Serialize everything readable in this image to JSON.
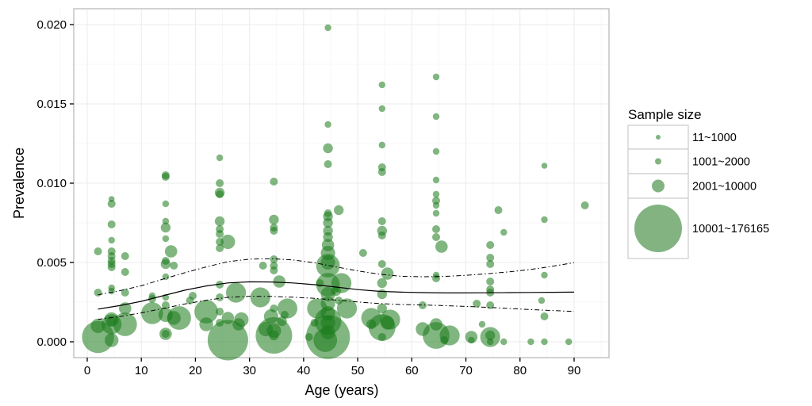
{
  "chart_data": {
    "type": "scatter",
    "title": "",
    "xlabel": "Age (years)",
    "ylabel": "Prevalence",
    "xlim": [
      -2,
      97
    ],
    "ylim": [
      -0.001,
      0.021
    ],
    "x_ticks": [
      0,
      10,
      20,
      30,
      40,
      50,
      60,
      70,
      80,
      90
    ],
    "x_tick_labels": [
      "0",
      "10",
      "20",
      "30",
      "40",
      "50",
      "60",
      "70",
      "80",
      "90"
    ],
    "y_ticks": [
      0.0,
      0.005,
      0.01,
      0.015,
      0.02
    ],
    "y_tick_labels": [
      "0.000",
      "0.005",
      "0.010",
      "0.015",
      "0.020"
    ],
    "grid": true,
    "point_color": "#1a7a1a",
    "point_opacity": 0.55,
    "legend": {
      "title": "Sample size",
      "placement": "right",
      "color": "#82b381",
      "entries": [
        {
          "label": "11~1000",
          "size": 500
        },
        {
          "label": "1001~2000",
          "size": 1500
        },
        {
          "label": "2001~10000",
          "size": 6000
        },
        {
          "label": "10001~176165",
          "size": 176165
        }
      ]
    },
    "points": [
      {
        "x": 2,
        "y": 0.0003,
        "n": 60000
      },
      {
        "x": 2,
        "y": 0.001,
        "n": 9000
      },
      {
        "x": 2,
        "y": 0.0057,
        "n": 1500
      },
      {
        "x": 2,
        "y": 0.0031,
        "n": 1500
      },
      {
        "x": 4.5,
        "y": 0.0011,
        "n": 20000
      },
      {
        "x": 4.5,
        "y": 0.0001,
        "n": 8000
      },
      {
        "x": 4.5,
        "y": 0.0014,
        "n": 9000
      },
      {
        "x": 4.5,
        "y": 0.009,
        "n": 500
      },
      {
        "x": 4.5,
        "y": 0.0087,
        "n": 1500
      },
      {
        "x": 4.5,
        "y": 0.0074,
        "n": 1500
      },
      {
        "x": 4.5,
        "y": 0.0064,
        "n": 800
      },
      {
        "x": 4.5,
        "y": 0.0057,
        "n": 1500
      },
      {
        "x": 4.5,
        "y": 0.0054,
        "n": 1500
      },
      {
        "x": 4.5,
        "y": 0.0051,
        "n": 1500
      },
      {
        "x": 4.5,
        "y": 0.0049,
        "n": 1500
      },
      {
        "x": 4.5,
        "y": 0.0047,
        "n": 1500
      },
      {
        "x": 4.5,
        "y": 0.0034,
        "n": 800
      },
      {
        "x": 4.5,
        "y": 0.0032,
        "n": 800
      },
      {
        "x": 4.5,
        "y": 0.0013,
        "n": 3000
      },
      {
        "x": 7,
        "y": 0.0011,
        "n": 30000
      },
      {
        "x": 7,
        "y": 0.0054,
        "n": 1500
      },
      {
        "x": 7,
        "y": 0.0044,
        "n": 1500
      },
      {
        "x": 7,
        "y": 0.0021,
        "n": 6000
      },
      {
        "x": 7,
        "y": 0.0031,
        "n": 1500
      },
      {
        "x": 12,
        "y": 0.0018,
        "n": 25000
      },
      {
        "x": 12,
        "y": 0.0029,
        "n": 800
      },
      {
        "x": 12,
        "y": 0.0027,
        "n": 1500
      },
      {
        "x": 14.5,
        "y": 0.0105,
        "n": 1500
      },
      {
        "x": 14.5,
        "y": 0.0104,
        "n": 1500
      },
      {
        "x": 14.5,
        "y": 0.0087,
        "n": 800
      },
      {
        "x": 14.5,
        "y": 0.0076,
        "n": 800
      },
      {
        "x": 14.5,
        "y": 0.0072,
        "n": 3000
      },
      {
        "x": 14.5,
        "y": 0.0065,
        "n": 800
      },
      {
        "x": 14.5,
        "y": 0.0051,
        "n": 1500
      },
      {
        "x": 14.5,
        "y": 0.0049,
        "n": 3000
      },
      {
        "x": 14.5,
        "y": 0.0041,
        "n": 800
      },
      {
        "x": 14.5,
        "y": 0.0028,
        "n": 800
      },
      {
        "x": 14.5,
        "y": 0.0023,
        "n": 1500
      },
      {
        "x": 14.5,
        "y": 0.0017,
        "n": 9000
      },
      {
        "x": 14.5,
        "y": 0.0005,
        "n": 6000
      },
      {
        "x": 14.5,
        "y": 0.0005,
        "n": 1500
      },
      {
        "x": 15.5,
        "y": 0.0057,
        "n": 6000
      },
      {
        "x": 16,
        "y": 0.0048,
        "n": 1500
      },
      {
        "x": 17,
        "y": 0.0015,
        "n": 30000
      },
      {
        "x": 16,
        "y": 0.0015,
        "n": 8000
      },
      {
        "x": 19.5,
        "y": 0.0029,
        "n": 1500
      },
      {
        "x": 19,
        "y": 0.0026,
        "n": 1500
      },
      {
        "x": 22,
        "y": 0.0019,
        "n": 30000
      },
      {
        "x": 22,
        "y": 0.0011,
        "n": 8000
      },
      {
        "x": 24.5,
        "y": 0.0116,
        "n": 800
      },
      {
        "x": 24.5,
        "y": 0.01,
        "n": 1500
      },
      {
        "x": 24.5,
        "y": 0.0094,
        "n": 3000
      },
      {
        "x": 24.5,
        "y": 0.0093,
        "n": 1500
      },
      {
        "x": 24.5,
        "y": 0.0076,
        "n": 3000
      },
      {
        "x": 24.5,
        "y": 0.0071,
        "n": 1500
      },
      {
        "x": 24.5,
        "y": 0.0068,
        "n": 1500
      },
      {
        "x": 24.5,
        "y": 0.0063,
        "n": 1500
      },
      {
        "x": 24.5,
        "y": 0.0059,
        "n": 1500
      },
      {
        "x": 24.5,
        "y": 0.0036,
        "n": 1500
      },
      {
        "x": 24.5,
        "y": 0.0028,
        "n": 1500
      },
      {
        "x": 24.5,
        "y": 0.0019,
        "n": 1500
      },
      {
        "x": 24.5,
        "y": 0.0012,
        "n": 1500
      },
      {
        "x": 26,
        "y": 0.0063,
        "n": 9000
      },
      {
        "x": 26,
        "y": 0.0001,
        "n": 100000
      },
      {
        "x": 26,
        "y": 0.0015,
        "n": 6000
      },
      {
        "x": 27.5,
        "y": 0.0031,
        "n": 20000
      },
      {
        "x": 28,
        "y": 0.0011,
        "n": 6000
      },
      {
        "x": 28.5,
        "y": 0.0014,
        "n": 9000
      },
      {
        "x": 32,
        "y": 0.0028,
        "n": 20000
      },
      {
        "x": 32.5,
        "y": 0.0048,
        "n": 1500
      },
      {
        "x": 34.5,
        "y": 0.0101,
        "n": 1500
      },
      {
        "x": 34.5,
        "y": 0.0077,
        "n": 3000
      },
      {
        "x": 34.5,
        "y": 0.0072,
        "n": 1500
      },
      {
        "x": 34.5,
        "y": 0.007,
        "n": 1500
      },
      {
        "x": 34.5,
        "y": 0.0052,
        "n": 1500
      },
      {
        "x": 34.5,
        "y": 0.0048,
        "n": 1500
      },
      {
        "x": 34.5,
        "y": 0.0045,
        "n": 1500
      },
      {
        "x": 34.5,
        "y": 0.0021,
        "n": 1500
      },
      {
        "x": 34.5,
        "y": 0.0007,
        "n": 9000
      },
      {
        "x": 34.5,
        "y": 0.0004,
        "n": 3000
      },
      {
        "x": 34.5,
        "y": 0.0004,
        "n": 80000
      },
      {
        "x": 34,
        "y": 0.0016,
        "n": 9000
      },
      {
        "x": 35.5,
        "y": 0.0038,
        "n": 6000
      },
      {
        "x": 36,
        "y": 0.0013,
        "n": 3000
      },
      {
        "x": 36.5,
        "y": 0.0017,
        "n": 1500
      },
      {
        "x": 37,
        "y": 0.0021,
        "n": 20000
      },
      {
        "x": 33,
        "y": 0.0008,
        "n": 9000
      },
      {
        "x": 42.5,
        "y": 0.0021,
        "n": 20000
      },
      {
        "x": 43,
        "y": 0.0037,
        "n": 1500
      },
      {
        "x": 44.5,
        "y": 0.0198,
        "n": 800
      },
      {
        "x": 44.5,
        "y": 0.0137,
        "n": 800
      },
      {
        "x": 44.5,
        "y": 0.0122,
        "n": 3000
      },
      {
        "x": 44.5,
        "y": 0.0112,
        "n": 1500
      },
      {
        "x": 44.5,
        "y": 0.0081,
        "n": 1500
      },
      {
        "x": 44.5,
        "y": 0.0079,
        "n": 3000
      },
      {
        "x": 44.5,
        "y": 0.0075,
        "n": 3000
      },
      {
        "x": 44.5,
        "y": 0.007,
        "n": 3000
      },
      {
        "x": 44.5,
        "y": 0.0066,
        "n": 3000
      },
      {
        "x": 44.5,
        "y": 0.0061,
        "n": 6000
      },
      {
        "x": 44.5,
        "y": 0.0056,
        "n": 9000
      },
      {
        "x": 44.5,
        "y": 0.005,
        "n": 9000
      },
      {
        "x": 44.5,
        "y": 0.0048,
        "n": 30000
      },
      {
        "x": 44.5,
        "y": 0.0036,
        "n": 30000
      },
      {
        "x": 44.5,
        "y": 0.003,
        "n": 9000
      },
      {
        "x": 44.5,
        "y": 0.0024,
        "n": 9000
      },
      {
        "x": 44.5,
        "y": 0.0018,
        "n": 9000
      },
      {
        "x": 44.5,
        "y": 0.0012,
        "n": 9000
      },
      {
        "x": 44.5,
        "y": 0.0006,
        "n": 9000
      },
      {
        "x": 44.5,
        "y": 0.0003,
        "n": 120000
      },
      {
        "x": 44.5,
        "y": 0.0013,
        "n": 40000
      },
      {
        "x": 44,
        "y": 0.0001,
        "n": 30000
      },
      {
        "x": 46.5,
        "y": 0.0083,
        "n": 3000
      },
      {
        "x": 47,
        "y": 0.0037,
        "n": 20000
      },
      {
        "x": 48,
        "y": 0.0021,
        "n": 20000
      },
      {
        "x": 46,
        "y": 0.0032,
        "n": 3000
      },
      {
        "x": 46.5,
        "y": 0.0026,
        "n": 1500
      },
      {
        "x": 42,
        "y": 0.0012,
        "n": 1500
      },
      {
        "x": 41,
        "y": 0.0003,
        "n": 1500
      },
      {
        "x": 52.5,
        "y": 0.0015,
        "n": 20000
      },
      {
        "x": 51,
        "y": 0.0056,
        "n": 1500
      },
      {
        "x": 52.5,
        "y": 0.0011,
        "n": 3000
      },
      {
        "x": 54.5,
        "y": 0.0162,
        "n": 800
      },
      {
        "x": 54.5,
        "y": 0.0147,
        "n": 800
      },
      {
        "x": 54.5,
        "y": 0.0124,
        "n": 800
      },
      {
        "x": 54.5,
        "y": 0.011,
        "n": 1500
      },
      {
        "x": 54.5,
        "y": 0.0107,
        "n": 1500
      },
      {
        "x": 54.5,
        "y": 0.0076,
        "n": 1500
      },
      {
        "x": 54.5,
        "y": 0.007,
        "n": 3000
      },
      {
        "x": 54.5,
        "y": 0.0067,
        "n": 1500
      },
      {
        "x": 54.5,
        "y": 0.0049,
        "n": 1500
      },
      {
        "x": 54.5,
        "y": 0.0037,
        "n": 3000
      },
      {
        "x": 54.5,
        "y": 0.003,
        "n": 3000
      },
      {
        "x": 54.5,
        "y": 0.0021,
        "n": 3000
      },
      {
        "x": 54.5,
        "y": 0.0009,
        "n": 40000
      },
      {
        "x": 54.5,
        "y": 0.0003,
        "n": 1500
      },
      {
        "x": 55.5,
        "y": 0.0043,
        "n": 6000
      },
      {
        "x": 56,
        "y": 0.0014,
        "n": 20000
      },
      {
        "x": 55.5,
        "y": 0.0012,
        "n": 8000
      },
      {
        "x": 62,
        "y": 0.0008,
        "n": 8000
      },
      {
        "x": 62,
        "y": 0.0023,
        "n": 1500
      },
      {
        "x": 64.5,
        "y": 0.0167,
        "n": 800
      },
      {
        "x": 64.5,
        "y": 0.0142,
        "n": 800
      },
      {
        "x": 64.5,
        "y": 0.012,
        "n": 800
      },
      {
        "x": 64.5,
        "y": 0.0102,
        "n": 800
      },
      {
        "x": 64.5,
        "y": 0.0093,
        "n": 800
      },
      {
        "x": 64.5,
        "y": 0.0089,
        "n": 1500
      },
      {
        "x": 64.5,
        "y": 0.0086,
        "n": 800
      },
      {
        "x": 64.5,
        "y": 0.0081,
        "n": 800
      },
      {
        "x": 64.5,
        "y": 0.0071,
        "n": 1500
      },
      {
        "x": 64.5,
        "y": 0.0066,
        "n": 1500
      },
      {
        "x": 64.5,
        "y": 0.0042,
        "n": 800
      },
      {
        "x": 64.5,
        "y": 0.004,
        "n": 1500
      },
      {
        "x": 64.5,
        "y": 0.0011,
        "n": 6000
      },
      {
        "x": 64.5,
        "y": 0.0004,
        "n": 40000
      },
      {
        "x": 65.5,
        "y": 0.006,
        "n": 6000
      },
      {
        "x": 67,
        "y": 0.0004,
        "n": 20000
      },
      {
        "x": 66,
        "y": 0.0001,
        "n": 1500
      },
      {
        "x": 71,
        "y": 0.0003,
        "n": 6000
      },
      {
        "x": 71,
        "y": 0.0001,
        "n": 800
      },
      {
        "x": 73,
        "y": 0.0011,
        "n": 800
      },
      {
        "x": 72,
        "y": 0.0024,
        "n": 1500
      },
      {
        "x": 74.5,
        "y": 0.0061,
        "n": 1500
      },
      {
        "x": 74.5,
        "y": 0.0053,
        "n": 1500
      },
      {
        "x": 74.5,
        "y": 0.0049,
        "n": 1500
      },
      {
        "x": 74.5,
        "y": 0.0038,
        "n": 1500
      },
      {
        "x": 74.5,
        "y": 0.0033,
        "n": 1500
      },
      {
        "x": 74.5,
        "y": 0.0031,
        "n": 1500
      },
      {
        "x": 74.5,
        "y": 0.0023,
        "n": 1500
      },
      {
        "x": 74.5,
        "y": 0.0003,
        "n": 20000
      },
      {
        "x": 74.5,
        "y": 0.0004,
        "n": 3000
      },
      {
        "x": 74.5,
        "y": 0,
        "n": 800
      },
      {
        "x": 76,
        "y": 0.0083,
        "n": 1500
      },
      {
        "x": 77,
        "y": 0.0069,
        "n": 800
      },
      {
        "x": 77,
        "y": 0,
        "n": 800
      },
      {
        "x": 82,
        "y": 0,
        "n": 800
      },
      {
        "x": 84,
        "y": 0.0026,
        "n": 800
      },
      {
        "x": 84.5,
        "y": 0.0111,
        "n": 500
      },
      {
        "x": 84.5,
        "y": 0.0077,
        "n": 800
      },
      {
        "x": 84.5,
        "y": 0.0042,
        "n": 800
      },
      {
        "x": 84.5,
        "y": 0.0016,
        "n": 1500
      },
      {
        "x": 84.5,
        "y": 0,
        "n": 800
      },
      {
        "x": 89,
        "y": 0,
        "n": 800
      },
      {
        "x": 92,
        "y": 0.0086,
        "n": 1500
      }
    ],
    "fit": {
      "name": "fit",
      "x": [
        2,
        6,
        10,
        14,
        18,
        22,
        26,
        30,
        34,
        38,
        42,
        46,
        50,
        54,
        58,
        62,
        66,
        70,
        74,
        78,
        82,
        86,
        90
      ],
      "y": [
        0.00206,
        0.00228,
        0.00255,
        0.0029,
        0.00325,
        0.00352,
        0.00371,
        0.00378,
        0.00377,
        0.00371,
        0.0036,
        0.00345,
        0.00329,
        0.00318,
        0.00313,
        0.0031,
        0.00308,
        0.00308,
        0.00309,
        0.0031,
        0.00311,
        0.00312,
        0.00313
      ]
    },
    "upper": {
      "name": "upper bound",
      "x": [
        2,
        6,
        10,
        14,
        18,
        22,
        26,
        30,
        34,
        38,
        42,
        46,
        50,
        54,
        58,
        62,
        66,
        70,
        74,
        78,
        82,
        86,
        90
      ],
      "y": [
        0.00296,
        0.00322,
        0.00353,
        0.00395,
        0.00435,
        0.00472,
        0.00505,
        0.00521,
        0.00524,
        0.00516,
        0.00498,
        0.00472,
        0.00447,
        0.00426,
        0.00413,
        0.0041,
        0.00412,
        0.00419,
        0.00429,
        0.00441,
        0.00456,
        0.00476,
        0.00499
      ]
    },
    "lower": {
      "name": "lower bound",
      "x": [
        2,
        6,
        10,
        14,
        18,
        22,
        26,
        30,
        34,
        38,
        42,
        46,
        50,
        54,
        58,
        62,
        66,
        70,
        74,
        78,
        82,
        86,
        90
      ],
      "y": [
        0.00141,
        0.00159,
        0.00182,
        0.0021,
        0.00238,
        0.00262,
        0.0028,
        0.00287,
        0.00286,
        0.00281,
        0.00274,
        0.00263,
        0.00251,
        0.00241,
        0.00235,
        0.00232,
        0.00228,
        0.00223,
        0.00217,
        0.0021,
        0.00203,
        0.00197,
        0.00191
      ]
    }
  }
}
